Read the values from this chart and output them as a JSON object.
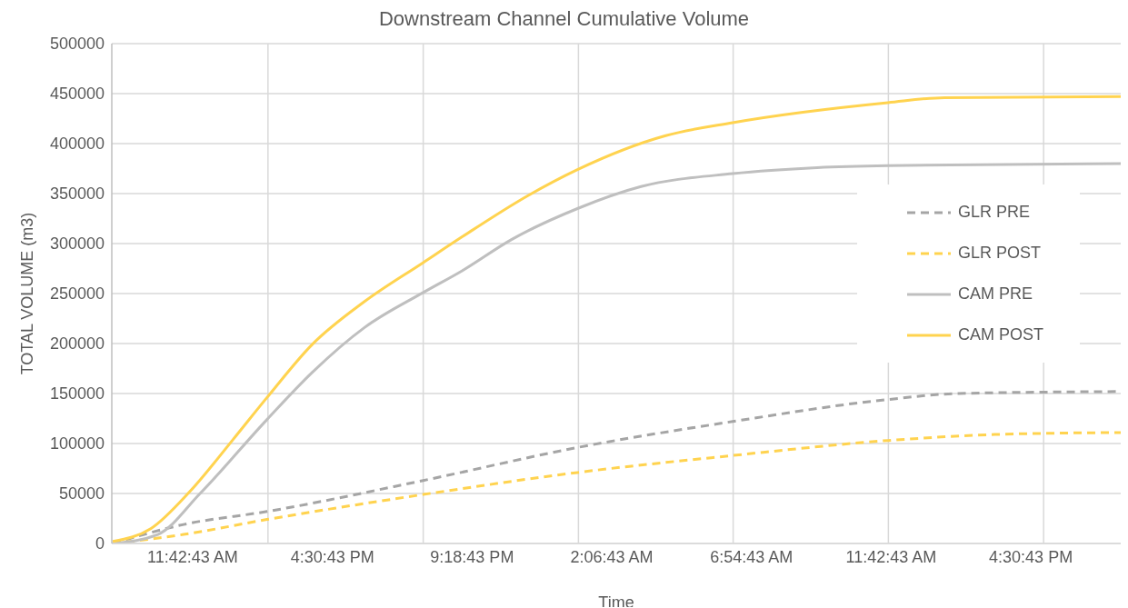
{
  "chart_data": {
    "type": "line",
    "title": "Downstream Channel Cumulative Volume",
    "xlabel": "Time",
    "ylabel": "TOTAL VOLUME (m3)",
    "xlim": [
      "2000-01-01T08:56",
      "2000-01-02T19:36"
    ],
    "xticks": [
      {
        "value": "2000-01-01T11:42:43",
        "label": "11:42:43 AM"
      },
      {
        "value": "2000-01-01T16:30:43",
        "label": "4:30:43 PM"
      },
      {
        "value": "2000-01-01T21:18:43",
        "label": "9:18:43 PM"
      },
      {
        "value": "2000-01-02T02:06:43",
        "label": "2:06:43 AM"
      },
      {
        "value": "2000-01-02T06:54:43",
        "label": "6:54:43 AM"
      },
      {
        "value": "2000-01-02T11:42:43",
        "label": "11:42:43 AM"
      },
      {
        "value": "2000-01-02T16:30:43",
        "label": "4:30:43 PM"
      },
      {
        "value": "2000-01-01T14:18",
        "label": null
      },
      {
        "value": "2000-01-01T19:38",
        "label": null
      },
      {
        "value": "2000-01-02T00:58",
        "label": null
      },
      {
        "value": "2000-01-02T06:17",
        "label": null
      },
      {
        "value": "2000-01-02T11:37",
        "label": null
      },
      {
        "value": "2000-01-02T16:57",
        "label": null
      }
    ],
    "ylim": [
      0,
      500000
    ],
    "yticks": [
      0,
      50000,
      100000,
      150000,
      200000,
      250000,
      300000,
      350000,
      400000,
      450000,
      500000
    ],
    "grid": true,
    "legend": "right",
    "marker": "none",
    "series": [
      {
        "name": "GLR PRE",
        "color": "#a5a5a5",
        "line_style": "dashed",
        "x": [
          "2000-01-01T08:58",
          "2000-01-01T11:24",
          "2000-01-01T14:16",
          "2000-01-01T19:38",
          "2000-01-02T00:56",
          "2000-01-02T06:16",
          "2000-01-02T11:36",
          "2000-01-02T14:02",
          "2000-01-02T19:36"
        ],
        "values": [
          0,
          19000,
          32000,
          63000,
          96000,
          122000,
          144000,
          150000,
          152000
        ]
      },
      {
        "name": "GLR POST",
        "color": "#ffd34f",
        "line_style": "dashed",
        "x": [
          "2000-01-01T08:58",
          "2000-01-01T11:24",
          "2000-01-01T14:16",
          "2000-01-01T19:38",
          "2000-01-02T00:56",
          "2000-01-02T06:16",
          "2000-01-02T11:36",
          "2000-01-02T15:16",
          "2000-01-02T19:36"
        ],
        "values": [
          0,
          9000,
          24000,
          49000,
          71000,
          88000,
          103000,
          109000,
          111000
        ]
      },
      {
        "name": "CAM PRE",
        "color": "#bfbfbf",
        "line_style": "solid",
        "x": [
          "2000-01-01T08:58",
          "2000-01-01T10:31",
          "2000-01-01T11:58",
          "2000-01-01T14:16",
          "2000-01-01T15:49",
          "2000-01-01T17:37",
          "2000-01-01T19:38",
          "2000-01-01T20:59",
          "2000-01-01T22:40",
          "2000-01-02T00:56",
          "2000-01-02T03:07",
          "2000-01-02T06:16",
          "2000-01-02T09:10",
          "2000-01-02T11:36",
          "2000-01-02T19:36"
        ],
        "values": [
          0,
          9000,
          50000,
          124000,
          171000,
          216000,
          251000,
          273000,
          304000,
          335000,
          357000,
          370000,
          376000,
          378000,
          380000
        ]
      },
      {
        "name": "CAM POST",
        "color": "#ffd34f",
        "line_style": "solid",
        "x": [
          "2000-01-01T08:58",
          "2000-01-01T10:17",
          "2000-01-01T11:37",
          "2000-01-01T13:06",
          "2000-01-01T14:16",
          "2000-01-01T15:49",
          "2000-01-01T17:37",
          "2000-01-01T19:38",
          "2000-01-01T20:59",
          "2000-01-01T23:14",
          "2000-01-02T00:56",
          "2000-01-02T03:58",
          "2000-01-02T06:16",
          "2000-01-02T11:36",
          "2000-01-02T13:33",
          "2000-01-02T19:36"
        ],
        "values": [
          2000,
          15000,
          52000,
          104000,
          146000,
          199000,
          242000,
          281000,
          307000,
          348000,
          374000,
          408000,
          421000,
          441000,
          446000,
          447000
        ]
      }
    ]
  }
}
